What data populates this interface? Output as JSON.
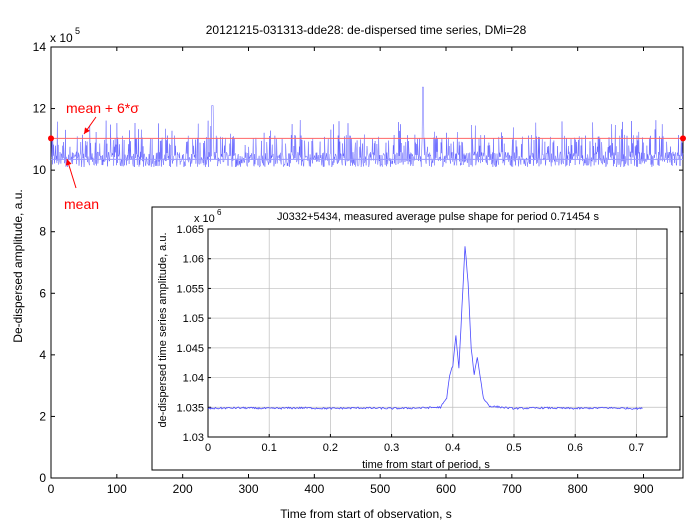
{
  "chart_data": [
    {
      "type": "line",
      "title": "20121215-031313-dde28:  de-dispersed time series, DMi=28",
      "xlabel": "Time from start of observation, s",
      "ylabel": "De-dispersed amplitude, a.u.",
      "xlim": [
        0,
        960
      ],
      "ylim": [
        0,
        1400000
      ],
      "y_multiplier_label": "x 10",
      "y_multiplier_exponent": "5",
      "xticks": [
        "0",
        "100",
        "200",
        "300",
        "400",
        "500",
        "600",
        "700",
        "800",
        "900"
      ],
      "xtick_values": [
        0,
        100,
        200,
        300,
        400,
        500,
        600,
        700,
        800,
        900
      ],
      "yticks": [
        "0",
        "2",
        "4",
        "6",
        "8",
        "10",
        "12",
        "14"
      ],
      "ytick_values": [
        0,
        200000,
        400000,
        600000,
        800000,
        1000000,
        1200000,
        1400000
      ],
      "grid": false,
      "series": [
        {
          "name": "",
          "color": "#4a4aff",
          "description_values": "noisy time series around 1.035e6 with spikes up to ~1.27e6",
          "baseline": 1035000,
          "noise_min": 990000,
          "spike_max": 1270000,
          "x_range": [
            0,
            960
          ]
        }
      ],
      "reference_lines": [
        {
          "label": "mean",
          "y": 1035000,
          "color": "#9999ff"
        },
        {
          "label": "mean + 6*σ",
          "y": 1103000,
          "color": "#ff6666"
        }
      ],
      "annotations": [
        {
          "text": "mean + 6*σ",
          "color": "#ff0000"
        },
        {
          "text": "mean",
          "color": "#ff0000"
        }
      ]
    },
    {
      "type": "line",
      "title": "J0332+5434, measured average pulse shape for period 0.71454 s",
      "xlabel": "time from start of period, s",
      "ylabel": "de-dispersed time series amplitude, a.u.",
      "xlim": [
        0,
        0.75
      ],
      "ylim": [
        1030000,
        1065000
      ],
      "y_multiplier_label": "x 10",
      "y_multiplier_exponent": "6",
      "xticks": [
        "0",
        "0.1",
        "0.2",
        "0.3",
        "0.4",
        "0.5",
        "0.6",
        "0.7"
      ],
      "xtick_values": [
        0,
        0.1,
        0.2,
        0.3,
        0.4,
        0.5,
        0.6,
        0.7
      ],
      "yticks": [
        "1.03",
        "1.035",
        "1.04",
        "1.045",
        "1.05",
        "1.055",
        "1.06",
        "1.065"
      ],
      "ytick_values": [
        1030000,
        1035000,
        1040000,
        1045000,
        1050000,
        1055000,
        1060000,
        1065000
      ],
      "grid": true,
      "series": [
        {
          "name": "",
          "color": "#4a4aff",
          "x": [
            0,
            0.05,
            0.1,
            0.15,
            0.2,
            0.25,
            0.3,
            0.35,
            0.38,
            0.39,
            0.395,
            0.4,
            0.405,
            0.41,
            0.415,
            0.42,
            0.425,
            0.43,
            0.435,
            0.44,
            0.445,
            0.45,
            0.46,
            0.48,
            0.5,
            0.55,
            0.6,
            0.65,
            0.7,
            0.71
          ],
          "y": [
            1034800,
            1034900,
            1034800,
            1034900,
            1034800,
            1034900,
            1034800,
            1034900,
            1035000,
            1036500,
            1040500,
            1042000,
            1047000,
            1041500,
            1052000,
            1062000,
            1056000,
            1045000,
            1040500,
            1043500,
            1040000,
            1036500,
            1035200,
            1035000,
            1034800,
            1034900,
            1034800,
            1034900,
            1034800,
            1034800
          ]
        }
      ]
    }
  ]
}
